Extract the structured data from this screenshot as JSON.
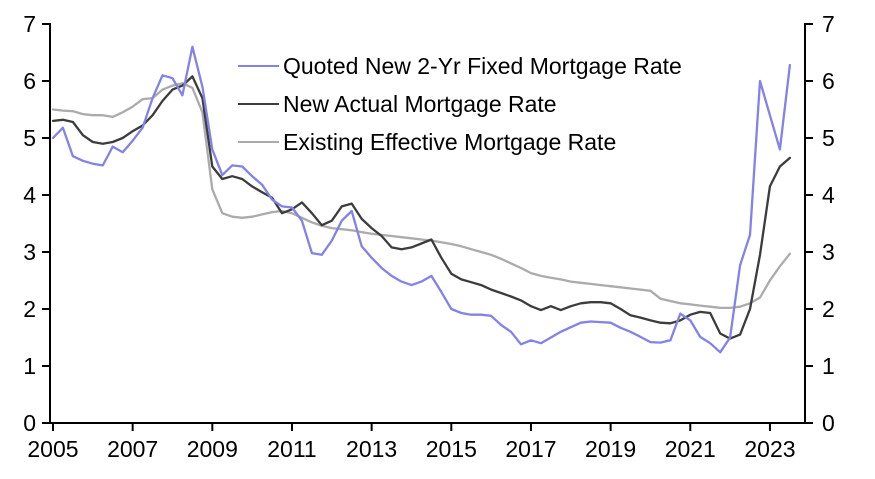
{
  "chart_data": {
    "type": "line",
    "title": "",
    "xlabel": "",
    "ylabel": "",
    "grid": false,
    "legend_position": "top-center-inside",
    "background_color": "#FFFFFF",
    "axis_color": "#000000",
    "xlim": [
      2004.925,
      2023.88
    ],
    "ylim": [
      0,
      7
    ],
    "x_ticks": [
      2005,
      2007,
      2009,
      2011,
      2013,
      2015,
      2017,
      2019,
      2021,
      2023
    ],
    "y_ticks": [
      0,
      1,
      2,
      3,
      4,
      5,
      6,
      7
    ],
    "x": [
      2005.0,
      2005.25,
      2005.5,
      2005.75,
      2006.0,
      2006.25,
      2006.5,
      2006.75,
      2007.0,
      2007.25,
      2007.5,
      2007.75,
      2008.0,
      2008.25,
      2008.5,
      2008.75,
      2009.0,
      2009.25,
      2009.5,
      2009.75,
      2010.0,
      2010.25,
      2010.5,
      2010.75,
      2011.0,
      2011.25,
      2011.5,
      2011.75,
      2012.0,
      2012.25,
      2012.5,
      2012.75,
      2013.0,
      2013.25,
      2013.5,
      2013.75,
      2014.0,
      2014.25,
      2014.5,
      2014.75,
      2015.0,
      2015.25,
      2015.5,
      2015.75,
      2016.0,
      2016.25,
      2016.5,
      2016.75,
      2017.0,
      2017.25,
      2017.5,
      2017.75,
      2018.0,
      2018.25,
      2018.5,
      2018.75,
      2019.0,
      2019.25,
      2019.5,
      2019.75,
      2020.0,
      2020.25,
      2020.5,
      2020.75,
      2021.0,
      2021.25,
      2021.5,
      2021.75,
      2022.0,
      2022.25,
      2022.5,
      2022.75,
      2023.0,
      2023.25,
      2023.5
    ],
    "series": [
      {
        "name": "Quoted New 2-Yr Fixed Mortgage Rate",
        "color": "#8282E8",
        "values": [
          5.0,
          5.18,
          4.68,
          4.6,
          4.55,
          4.52,
          4.85,
          4.75,
          4.95,
          5.18,
          5.7,
          6.1,
          6.05,
          5.75,
          6.6,
          5.9,
          4.8,
          4.35,
          4.52,
          4.5,
          4.33,
          4.18,
          3.92,
          3.8,
          3.78,
          3.55,
          2.98,
          2.95,
          3.2,
          3.55,
          3.72,
          3.1,
          2.9,
          2.72,
          2.58,
          2.48,
          2.42,
          2.48,
          2.58,
          2.3,
          2.0,
          1.93,
          1.9,
          1.9,
          1.88,
          1.72,
          1.6,
          1.38,
          1.45,
          1.4,
          1.5,
          1.6,
          1.68,
          1.76,
          1.78,
          1.77,
          1.76,
          1.67,
          1.6,
          1.51,
          1.42,
          1.41,
          1.45,
          1.92,
          1.8,
          1.51,
          1.4,
          1.24,
          1.5,
          2.77,
          3.3,
          6.0,
          5.4,
          4.8,
          6.28
        ]
      },
      {
        "name": "New Actual Mortgage Rate",
        "color": "#3C3C3C",
        "values": [
          5.3,
          5.32,
          5.28,
          5.05,
          4.93,
          4.9,
          4.93,
          5.0,
          5.12,
          5.22,
          5.4,
          5.65,
          5.85,
          5.92,
          6.08,
          5.7,
          4.5,
          4.28,
          4.33,
          4.28,
          4.15,
          4.05,
          3.95,
          3.68,
          3.75,
          3.87,
          3.68,
          3.47,
          3.55,
          3.8,
          3.85,
          3.58,
          3.42,
          3.28,
          3.08,
          3.05,
          3.08,
          3.15,
          3.22,
          2.9,
          2.62,
          2.52,
          2.47,
          2.42,
          2.34,
          2.28,
          2.22,
          2.15,
          2.05,
          1.98,
          2.05,
          1.98,
          2.05,
          2.1,
          2.12,
          2.12,
          2.1,
          2.0,
          1.89,
          1.85,
          1.8,
          1.76,
          1.75,
          1.8,
          1.9,
          1.95,
          1.93,
          1.57,
          1.48,
          1.55,
          2.0,
          2.95,
          4.15,
          4.5,
          4.65
        ]
      },
      {
        "name": "Existing Effective Mortgage Rate",
        "color": "#ABABAB",
        "values": [
          5.5,
          5.48,
          5.47,
          5.42,
          5.4,
          5.4,
          5.37,
          5.45,
          5.55,
          5.68,
          5.7,
          5.85,
          5.92,
          5.96,
          5.88,
          5.45,
          4.1,
          3.68,
          3.62,
          3.6,
          3.62,
          3.66,
          3.7,
          3.72,
          3.68,
          3.6,
          3.52,
          3.46,
          3.42,
          3.4,
          3.38,
          3.35,
          3.32,
          3.3,
          3.28,
          3.26,
          3.24,
          3.22,
          3.2,
          3.17,
          3.14,
          3.1,
          3.05,
          3.0,
          2.95,
          2.88,
          2.8,
          2.72,
          2.63,
          2.58,
          2.55,
          2.52,
          2.48,
          2.46,
          2.44,
          2.42,
          2.4,
          2.38,
          2.36,
          2.34,
          2.32,
          2.18,
          2.14,
          2.1,
          2.08,
          2.06,
          2.04,
          2.02,
          2.02,
          2.04,
          2.1,
          2.2,
          2.5,
          2.75,
          2.97
        ]
      }
    ]
  }
}
